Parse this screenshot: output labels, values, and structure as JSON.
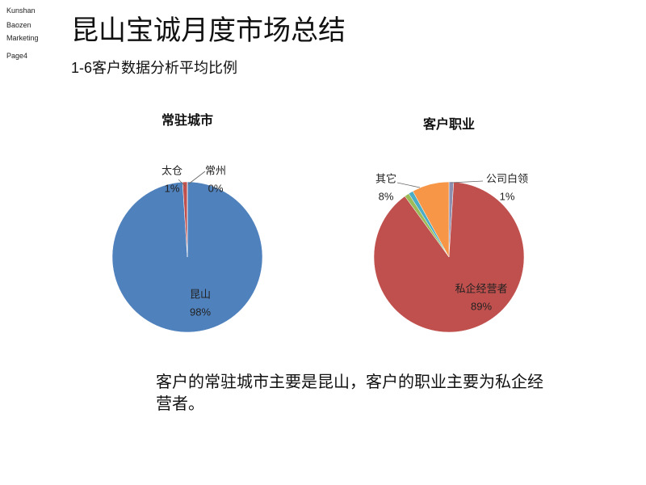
{
  "slide": {
    "side_labels": [
      "Kunshan",
      "Baozen",
      "Marketing",
      "Page4"
    ],
    "title": "昆山宝诚月度市场总结",
    "subtitle": "1-6客户数据分析平均比例",
    "summary": "客户的常驻城市主要是昆山，客户的职业主要为私企经营者。"
  },
  "chart_data": [
    {
      "type": "pie",
      "title": "常驻城市",
      "categories": [
        "昆山",
        "太仓",
        "常州"
      ],
      "values": [
        98,
        1,
        0
      ],
      "value_labels": [
        "98%",
        "1%",
        "0%"
      ],
      "colors": [
        "#4f81bd",
        "#c0504d",
        "#9bbb59"
      ]
    },
    {
      "type": "pie",
      "title": "客户职业",
      "categories": [
        "公司白领",
        "私企经营者",
        null,
        null,
        "其它"
      ],
      "values": [
        1,
        89,
        1,
        1,
        8
      ],
      "value_labels": [
        "1%",
        "89%",
        null,
        null,
        "8%"
      ],
      "colors": [
        "#8c8fb0",
        "#c0504d",
        "#9bbb59",
        "#4bacc6",
        "#f79646"
      ]
    }
  ]
}
